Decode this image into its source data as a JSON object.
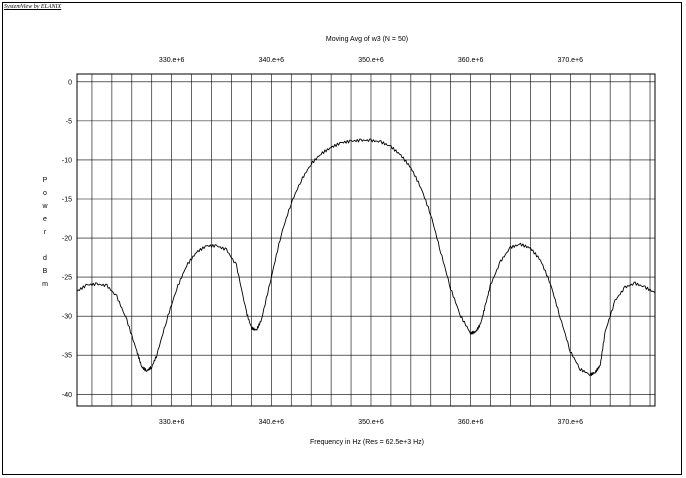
{
  "app": {
    "brand": "SystemView by ELANIX"
  },
  "chart_data": {
    "type": "line",
    "title": "Moving Avg of w3 (N = 50)",
    "xlabel": "Frequency in Hz (Res = 62.5e+3 Hz)",
    "ylabel": "Power dBm",
    "ylabel_letters": [
      "P",
      "o",
      "w",
      "e",
      "r",
      "",
      "d",
      "B",
      "m"
    ],
    "xlim": [
      320500000,
      378500000
    ],
    "ylim": [
      -41.5,
      1
    ],
    "x_ticks": [
      330000000,
      340000000,
      350000000,
      360000000,
      370000000
    ],
    "x_tick_labels": [
      "330.e+6",
      "340.e+6",
      "350.e+6",
      "360.e+6",
      "370.e+6"
    ],
    "y_ticks": [
      0,
      -5,
      -10,
      -15,
      -20,
      -25,
      -30,
      -35,
      -40
    ],
    "y_tick_labels": [
      "0",
      "-5",
      "-10",
      "-15",
      "-20",
      "-25",
      "-30",
      "-35",
      "-40"
    ],
    "grid": true,
    "series": [
      {
        "color": "#000000",
        "x": [
          320500000,
          321500000,
          322500000,
          323500000,
          324500000,
          325500000,
          326500000,
          327000000,
          327500000,
          328000000,
          328500000,
          329500000,
          330500000,
          331500000,
          332500000,
          333500000,
          334500000,
          335500000,
          336500000,
          337500000,
          338000000,
          338500000,
          339000000,
          340000000,
          341000000,
          342000000,
          343000000,
          344000000,
          345000000,
          346000000,
          347000000,
          348000000,
          349000000,
          350000000,
          351000000,
          352000000,
          353000000,
          354000000,
          355000000,
          356000000,
          357000000,
          358000000,
          359000000,
          360000000,
          360500000,
          361000000,
          361500000,
          362000000,
          363000000,
          364000000,
          365000000,
          366000000,
          367000000,
          368000000,
          369000000,
          370000000,
          371000000,
          372000000,
          372500000,
          373000000,
          373500000,
          374500000,
          375500000,
          376500000,
          377500000,
          378500000
        ],
        "y": [
          -26.8,
          -26.0,
          -25.9,
          -26.1,
          -27.5,
          -30.5,
          -34.5,
          -36.5,
          -37.0,
          -36.5,
          -35.0,
          -30.5,
          -26.5,
          -23.5,
          -21.8,
          -21.0,
          -21.0,
          -21.5,
          -23.5,
          -29.5,
          -31.5,
          -31.8,
          -30.5,
          -25.0,
          -19.5,
          -15.5,
          -12.6,
          -10.5,
          -9.2,
          -8.4,
          -7.8,
          -7.6,
          -7.5,
          -7.5,
          -7.7,
          -8.3,
          -9.4,
          -11.0,
          -13.5,
          -17.0,
          -21.8,
          -26.5,
          -30.0,
          -32.2,
          -32.0,
          -31.0,
          -28.5,
          -26.0,
          -23.0,
          -21.2,
          -20.8,
          -21.3,
          -22.8,
          -25.8,
          -30.2,
          -34.5,
          -36.8,
          -37.5,
          -37.2,
          -36.3,
          -32.0,
          -28.0,
          -26.3,
          -25.8,
          -26.3,
          -27.0
        ]
      }
    ]
  }
}
